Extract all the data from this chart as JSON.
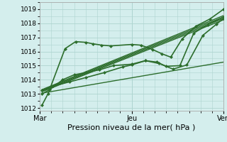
{
  "bg_color": "#d4eeed",
  "grid_color": "#aed4d0",
  "line_color": "#2d6e2d",
  "marker_color": "#2d6e2d",
  "xlabel": "Pression niveau de la mer( hPa )",
  "xtick_labels": [
    "Mar",
    "Jeu",
    "Ven"
  ],
  "xtick_positions": [
    0.0,
    2.0,
    4.0
  ],
  "ylim": [
    1011.8,
    1019.5
  ],
  "yticks": [
    1012,
    1013,
    1014,
    1015,
    1016,
    1017,
    1018,
    1019
  ],
  "xlim": [
    0.0,
    4.0
  ],
  "series": [
    {
      "x": [
        0.05,
        0.18,
        0.55,
        0.78,
        1.0,
        1.15,
        1.35,
        1.55,
        2.0,
        2.2,
        2.45,
        2.65,
        2.85,
        3.1,
        3.4,
        3.7,
        4.0
      ],
      "y": [
        1012.2,
        1013.0,
        1016.2,
        1016.7,
        1016.65,
        1016.55,
        1016.45,
        1016.4,
        1016.5,
        1016.45,
        1016.15,
        1015.85,
        1015.6,
        1016.9,
        1017.8,
        1018.3,
        1019.0
      ],
      "marker": true,
      "lw": 1.2
    },
    {
      "x": [
        0.05,
        0.22,
        0.5,
        0.75,
        1.0,
        1.3,
        1.6,
        2.0,
        2.3,
        2.55,
        2.75,
        3.05,
        3.35,
        3.65,
        4.0
      ],
      "y": [
        1013.0,
        1013.3,
        1014.0,
        1014.35,
        1014.5,
        1014.7,
        1015.0,
        1015.1,
        1015.35,
        1015.25,
        1014.95,
        1015.0,
        1017.3,
        1017.9,
        1018.45
      ],
      "marker": true,
      "lw": 1.2
    },
    {
      "x": [
        0.05,
        0.3,
        0.65,
        1.0,
        1.4,
        1.8,
        2.0,
        2.3,
        2.6,
        2.9,
        3.2,
        3.55,
        3.85,
        4.0
      ],
      "y": [
        1013.25,
        1013.55,
        1013.85,
        1014.15,
        1014.5,
        1014.9,
        1015.05,
        1015.35,
        1015.15,
        1014.75,
        1015.05,
        1017.15,
        1017.95,
        1018.35
      ],
      "marker": true,
      "lw": 1.2
    },
    {
      "x": [
        0.05,
        4.0
      ],
      "y": [
        1013.15,
        1018.25
      ],
      "marker": false,
      "lw": 1.0
    },
    {
      "x": [
        0.05,
        4.0
      ],
      "y": [
        1013.2,
        1018.35
      ],
      "marker": false,
      "lw": 1.0
    },
    {
      "x": [
        0.05,
        4.0
      ],
      "y": [
        1013.25,
        1018.45
      ],
      "marker": false,
      "lw": 1.0
    },
    {
      "x": [
        0.05,
        4.0
      ],
      "y": [
        1013.3,
        1018.55
      ],
      "marker": false,
      "lw": 1.0
    },
    {
      "x": [
        0.05,
        4.0
      ],
      "y": [
        1013.05,
        1015.25
      ],
      "marker": false,
      "lw": 1.0
    }
  ],
  "vlines_x": [
    0.0,
    2.0,
    4.0
  ],
  "xlabel_fontsize": 8,
  "ytick_fontsize": 6.5,
  "xtick_fontsize": 7
}
